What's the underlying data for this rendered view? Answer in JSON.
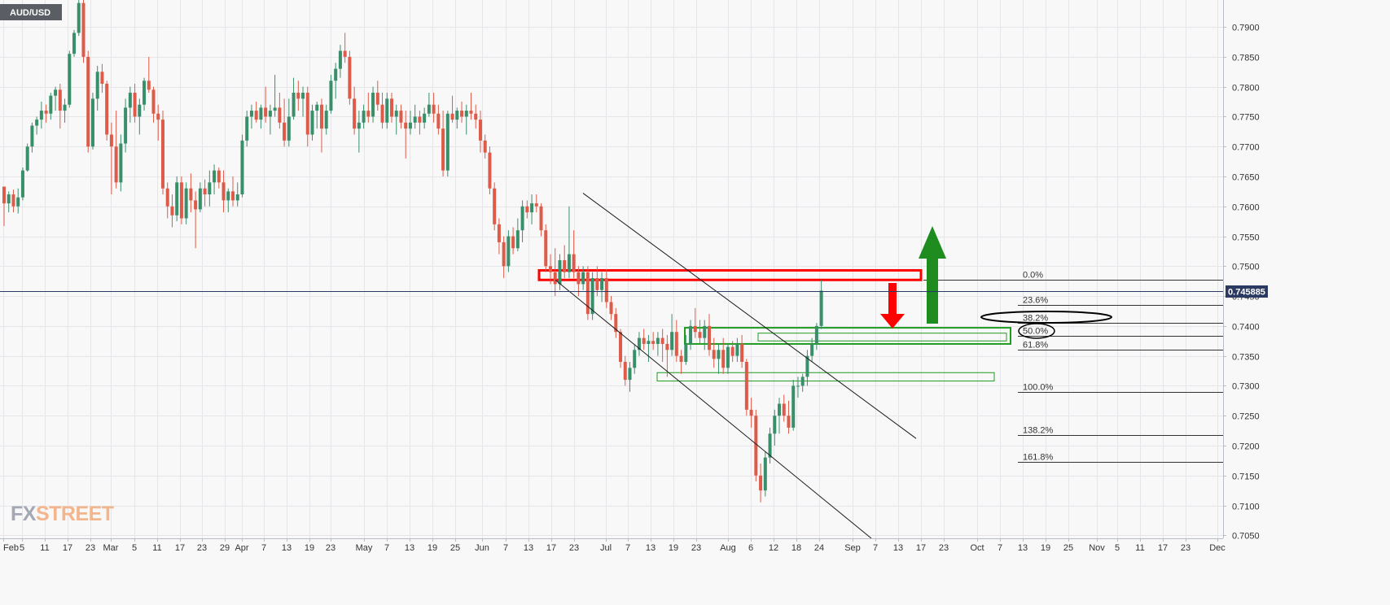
{
  "symbol_label": "AUD/USD",
  "brand": {
    "fx": "FX",
    "street": "STREET"
  },
  "price_label": "0.745885",
  "chart_data": {
    "type": "candlestick",
    "title": "AUD/USD",
    "colors": {
      "up": "#3a8f6b",
      "down": "#de5b49",
      "resistance": "#ff0000",
      "support": "#1f9b1f",
      "arrow_up": "#1f8c1f",
      "arrow_down": "#ff0000",
      "background": "#f8f8f9",
      "grid": "#e6e6ea"
    },
    "ylim": [
      0.7045,
      0.7945
    ],
    "y_ticks": [
      "0.7900",
      "0.7850",
      "0.7800",
      "0.7750",
      "0.7700",
      "0.7650",
      "0.7600",
      "0.7550",
      "0.7500",
      "0.7450",
      "0.7400",
      "0.7350",
      "0.7300",
      "0.7250",
      "0.7200",
      "0.7150",
      "0.7100",
      "0.7050"
    ],
    "x_ticks": [
      "Feb",
      "5",
      "11",
      "17",
      "23",
      "Mar",
      "5",
      "11",
      "17",
      "23",
      "29",
      "Apr",
      "7",
      "13",
      "19",
      "23",
      "May",
      "7",
      "13",
      "19",
      "25",
      "Jun",
      "7",
      "13",
      "17",
      "23",
      "Jul",
      "7",
      "13",
      "19",
      "23",
      "Aug",
      "6",
      "12",
      "18",
      "24",
      "Sep",
      "7",
      "13",
      "17",
      "23",
      "Oct",
      "7",
      "13",
      "19",
      "25",
      "Nov",
      "5",
      "11",
      "17",
      "23",
      "Dec"
    ],
    "current_price": 0.745885,
    "fibonacci": {
      "levels": [
        {
          "label": "0.0%",
          "value": 0.7477
        },
        {
          "label": "23.6%",
          "value": 0.7435
        },
        {
          "label": "38.2%",
          "value": 0.7405
        },
        {
          "label": "50.0%",
          "value": 0.7383
        },
        {
          "label": "61.8%",
          "value": 0.736
        },
        {
          "label": "100.0%",
          "value": 0.729
        },
        {
          "label": "138.2%",
          "value": 0.7218
        },
        {
          "label": "161.8%",
          "value": 0.7173
        }
      ],
      "highlighted": [
        "38.2%",
        "50.0%"
      ]
    },
    "zones": [
      {
        "name": "resistance-zone",
        "from": 0.7477,
        "to": 0.7493
      },
      {
        "name": "support-zone-upper",
        "from": 0.737,
        "to": 0.7397
      },
      {
        "name": "support-zone-mid",
        "from": 0.7375,
        "to": 0.7388
      },
      {
        "name": "support-zone-lower",
        "from": 0.7308,
        "to": 0.7322
      }
    ],
    "trendlines": [
      {
        "name": "upper-channel-line",
        "from": [
          "Jun 23",
          0.7622
        ],
        "to": [
          "Sep 17",
          0.7212
        ]
      },
      {
        "name": "lower-channel-line",
        "from": [
          "Jun 17",
          0.7477
        ],
        "to": [
          "Sep 7",
          0.7045
        ]
      }
    ],
    "candles": [
      [
        0.7633,
        0.7633,
        0.7567,
        0.7605
      ],
      [
        0.7605,
        0.7625,
        0.759,
        0.762
      ],
      [
        0.762,
        0.7628,
        0.759,
        0.76
      ],
      [
        0.76,
        0.763,
        0.7588,
        0.7615
      ],
      [
        0.7615,
        0.7665,
        0.761,
        0.766
      ],
      [
        0.766,
        0.7705,
        0.7658,
        0.77
      ],
      [
        0.77,
        0.774,
        0.769,
        0.7735
      ],
      [
        0.7735,
        0.775,
        0.772,
        0.7745
      ],
      [
        0.7745,
        0.7775,
        0.773,
        0.776
      ],
      [
        0.776,
        0.777,
        0.774,
        0.7755
      ],
      [
        0.7755,
        0.779,
        0.7745,
        0.7785
      ],
      [
        0.7785,
        0.78,
        0.776,
        0.7795
      ],
      [
        0.7795,
        0.7805,
        0.773,
        0.776
      ],
      [
        0.776,
        0.778,
        0.774,
        0.777
      ],
      [
        0.777,
        0.786,
        0.7765,
        0.7855
      ],
      [
        0.7855,
        0.7895,
        0.785,
        0.789
      ],
      [
        0.789,
        0.795,
        0.7885,
        0.794
      ],
      [
        0.794,
        0.7945,
        0.784,
        0.785
      ],
      [
        0.785,
        0.786,
        0.769,
        0.77
      ],
      [
        0.77,
        0.779,
        0.7695,
        0.778
      ],
      [
        0.778,
        0.7835,
        0.776,
        0.7825
      ],
      [
        0.7825,
        0.7838,
        0.779,
        0.7805
      ],
      [
        0.7805,
        0.781,
        0.771,
        0.772
      ],
      [
        0.772,
        0.774,
        0.762,
        0.77
      ],
      [
        0.77,
        0.776,
        0.763,
        0.764
      ],
      [
        0.764,
        0.772,
        0.7625,
        0.7705
      ],
      [
        0.7705,
        0.778,
        0.769,
        0.7765
      ],
      [
        0.7765,
        0.78,
        0.774,
        0.779
      ],
      [
        0.779,
        0.7805,
        0.774,
        0.775
      ],
      [
        0.775,
        0.778,
        0.772,
        0.777
      ],
      [
        0.777,
        0.7815,
        0.776,
        0.781
      ],
      [
        0.781,
        0.785,
        0.779,
        0.7795
      ],
      [
        0.7795,
        0.78,
        0.774,
        0.7755
      ],
      [
        0.7755,
        0.777,
        0.771,
        0.7745
      ],
      [
        0.7745,
        0.776,
        0.762,
        0.763
      ],
      [
        0.763,
        0.764,
        0.758,
        0.76
      ],
      [
        0.76,
        0.762,
        0.7565,
        0.7585
      ],
      [
        0.7585,
        0.765,
        0.7575,
        0.764
      ],
      [
        0.764,
        0.765,
        0.757,
        0.758
      ],
      [
        0.758,
        0.764,
        0.757,
        0.763
      ],
      [
        0.763,
        0.7655,
        0.759,
        0.761
      ],
      [
        0.761,
        0.7625,
        0.753,
        0.7595
      ],
      [
        0.7595,
        0.764,
        0.759,
        0.763
      ],
      [
        0.763,
        0.7645,
        0.76,
        0.762
      ],
      [
        0.762,
        0.766,
        0.76,
        0.764
      ],
      [
        0.764,
        0.767,
        0.762,
        0.766
      ],
      [
        0.766,
        0.7665,
        0.763,
        0.764
      ],
      [
        0.764,
        0.766,
        0.759,
        0.761
      ],
      [
        0.761,
        0.763,
        0.759,
        0.7625
      ],
      [
        0.7625,
        0.765,
        0.76,
        0.761
      ],
      [
        0.761,
        0.764,
        0.76,
        0.762
      ],
      [
        0.762,
        0.772,
        0.7615,
        0.771
      ],
      [
        0.771,
        0.776,
        0.77,
        0.775
      ],
      [
        0.775,
        0.777,
        0.773,
        0.776
      ],
      [
        0.776,
        0.7775,
        0.774,
        0.7745
      ],
      [
        0.7745,
        0.777,
        0.773,
        0.7765
      ],
      [
        0.7765,
        0.78,
        0.774,
        0.775
      ],
      [
        0.775,
        0.777,
        0.772,
        0.776
      ],
      [
        0.776,
        0.782,
        0.775,
        0.7765
      ],
      [
        0.7765,
        0.779,
        0.773,
        0.774
      ],
      [
        0.774,
        0.778,
        0.77,
        0.771
      ],
      [
        0.771,
        0.778,
        0.77,
        0.775
      ],
      [
        0.775,
        0.7815,
        0.7745,
        0.779
      ],
      [
        0.779,
        0.781,
        0.776,
        0.778
      ],
      [
        0.778,
        0.78,
        0.775,
        0.779
      ],
      [
        0.779,
        0.78,
        0.77,
        0.772
      ],
      [
        0.772,
        0.777,
        0.771,
        0.776
      ],
      [
        0.776,
        0.7775,
        0.773,
        0.777
      ],
      [
        0.777,
        0.778,
        0.769,
        0.773
      ],
      [
        0.773,
        0.777,
        0.772,
        0.776
      ],
      [
        0.776,
        0.782,
        0.7755,
        0.781
      ],
      [
        0.781,
        0.784,
        0.778,
        0.783
      ],
      [
        0.783,
        0.787,
        0.7815,
        0.786
      ],
      [
        0.786,
        0.789,
        0.784,
        0.785
      ],
      [
        0.785,
        0.786,
        0.777,
        0.778
      ],
      [
        0.778,
        0.78,
        0.772,
        0.773
      ],
      [
        0.773,
        0.776,
        0.769,
        0.774
      ],
      [
        0.774,
        0.777,
        0.773,
        0.776
      ],
      [
        0.776,
        0.779,
        0.774,
        0.775
      ],
      [
        0.775,
        0.78,
        0.774,
        0.779
      ],
      [
        0.779,
        0.781,
        0.776,
        0.777
      ],
      [
        0.777,
        0.779,
        0.773,
        0.774
      ],
      [
        0.774,
        0.779,
        0.773,
        0.778
      ],
      [
        0.778,
        0.779,
        0.774,
        0.775
      ],
      [
        0.775,
        0.777,
        0.772,
        0.776
      ],
      [
        0.776,
        0.777,
        0.773,
        0.774
      ],
      [
        0.774,
        0.776,
        0.768,
        0.773
      ],
      [
        0.773,
        0.776,
        0.772,
        0.774
      ],
      [
        0.774,
        0.777,
        0.773,
        0.775
      ],
      [
        0.775,
        0.776,
        0.772,
        0.774
      ],
      [
        0.774,
        0.7765,
        0.773,
        0.7755
      ],
      [
        0.7755,
        0.779,
        0.775,
        0.777
      ],
      [
        0.777,
        0.779,
        0.774,
        0.7755
      ],
      [
        0.7755,
        0.777,
        0.772,
        0.773
      ],
      [
        0.773,
        0.776,
        0.765,
        0.766
      ],
      [
        0.766,
        0.776,
        0.765,
        0.7755
      ],
      [
        0.7755,
        0.7785,
        0.774,
        0.7745
      ],
      [
        0.7745,
        0.7765,
        0.773,
        0.776
      ],
      [
        0.776,
        0.7775,
        0.774,
        0.775
      ],
      [
        0.775,
        0.777,
        0.772,
        0.776
      ],
      [
        0.776,
        0.779,
        0.7745,
        0.7755
      ],
      [
        0.7755,
        0.777,
        0.773,
        0.7745
      ],
      [
        0.7745,
        0.776,
        0.769,
        0.771
      ],
      [
        0.771,
        0.772,
        0.768,
        0.769
      ],
      [
        0.769,
        0.77,
        0.762,
        0.763
      ],
      [
        0.763,
        0.764,
        0.756,
        0.757
      ],
      [
        0.757,
        0.758,
        0.752,
        0.754
      ],
      [
        0.754,
        0.755,
        0.748,
        0.75
      ],
      [
        0.75,
        0.756,
        0.749,
        0.755
      ],
      [
        0.755,
        0.7565,
        0.752,
        0.753
      ],
      [
        0.753,
        0.758,
        0.7525,
        0.756
      ],
      [
        0.756,
        0.761,
        0.754,
        0.76
      ],
      [
        0.76,
        0.761,
        0.758,
        0.759
      ],
      [
        0.759,
        0.762,
        0.757,
        0.7605
      ],
      [
        0.7605,
        0.762,
        0.759,
        0.76
      ],
      [
        0.76,
        0.7605,
        0.755,
        0.756
      ],
      [
        0.756,
        0.757,
        0.749,
        0.75
      ],
      [
        0.75,
        0.752,
        0.747,
        0.749
      ],
      [
        0.749,
        0.753,
        0.745,
        0.747
      ],
      [
        0.747,
        0.752,
        0.746,
        0.751
      ],
      [
        0.751,
        0.7535,
        0.748,
        0.749
      ],
      [
        0.749,
        0.76,
        0.748,
        0.752
      ],
      [
        0.752,
        0.756,
        0.748,
        0.749
      ],
      [
        0.749,
        0.75,
        0.745,
        0.747
      ],
      [
        0.747,
        0.75,
        0.746,
        0.749
      ],
      [
        0.749,
        0.75,
        0.741,
        0.742
      ],
      [
        0.742,
        0.749,
        0.741,
        0.748
      ],
      [
        0.748,
        0.75,
        0.745,
        0.746
      ],
      [
        0.746,
        0.749,
        0.744,
        0.748
      ],
      [
        0.748,
        0.7495,
        0.743,
        0.744
      ],
      [
        0.744,
        0.745,
        0.741,
        0.742
      ],
      [
        0.742,
        0.743,
        0.738,
        0.739
      ],
      [
        0.739,
        0.7395,
        0.733,
        0.734
      ],
      [
        0.734,
        0.735,
        0.73,
        0.731
      ],
      [
        0.731,
        0.734,
        0.729,
        0.733
      ],
      [
        0.733,
        0.737,
        0.732,
        0.736
      ],
      [
        0.736,
        0.739,
        0.735,
        0.738
      ],
      [
        0.738,
        0.7395,
        0.736,
        0.737
      ],
      [
        0.737,
        0.7385,
        0.734,
        0.7375
      ],
      [
        0.7375,
        0.739,
        0.736,
        0.737
      ],
      [
        0.737,
        0.739,
        0.735,
        0.738
      ],
      [
        0.738,
        0.7395,
        0.734,
        0.737
      ],
      [
        0.737,
        0.7385,
        0.7315,
        0.736
      ],
      [
        0.736,
        0.742,
        0.735,
        0.739
      ],
      [
        0.739,
        0.741,
        0.734,
        0.735
      ],
      [
        0.735,
        0.736,
        0.732,
        0.734
      ],
      [
        0.734,
        0.7385,
        0.7335,
        0.737
      ],
      [
        0.737,
        0.741,
        0.736,
        0.74
      ],
      [
        0.74,
        0.743,
        0.738,
        0.739
      ],
      [
        0.739,
        0.741,
        0.737,
        0.738
      ],
      [
        0.738,
        0.741,
        0.736,
        0.74
      ],
      [
        0.74,
        0.742,
        0.735,
        0.736
      ],
      [
        0.736,
        0.738,
        0.733,
        0.7345
      ],
      [
        0.7345,
        0.737,
        0.732,
        0.736
      ],
      [
        0.736,
        0.738,
        0.732,
        0.733
      ],
      [
        0.733,
        0.737,
        0.732,
        0.7365
      ],
      [
        0.7365,
        0.7375,
        0.734,
        0.735
      ],
      [
        0.735,
        0.738,
        0.734,
        0.737
      ],
      [
        0.737,
        0.7385,
        0.733,
        0.734
      ],
      [
        0.734,
        0.7345,
        0.725,
        0.726
      ],
      [
        0.726,
        0.728,
        0.723,
        0.725
      ],
      [
        0.725,
        0.726,
        0.714,
        0.715
      ],
      [
        0.715,
        0.717,
        0.7105,
        0.7125
      ],
      [
        0.7125,
        0.719,
        0.7115,
        0.718
      ],
      [
        0.718,
        0.723,
        0.717,
        0.722
      ],
      [
        0.722,
        0.726,
        0.72,
        0.725
      ],
      [
        0.725,
        0.728,
        0.722,
        0.727
      ],
      [
        0.727,
        0.7285,
        0.724,
        0.725
      ],
      [
        0.725,
        0.7275,
        0.722,
        0.723
      ],
      [
        0.723,
        0.731,
        0.7225,
        0.73
      ],
      [
        0.73,
        0.7315,
        0.728,
        0.73
      ],
      [
        0.73,
        0.732,
        0.729,
        0.7315
      ],
      [
        0.7315,
        0.736,
        0.73,
        0.735
      ],
      [
        0.735,
        0.738,
        0.734,
        0.737
      ],
      [
        0.737,
        0.7405,
        0.736,
        0.74
      ],
      [
        0.74,
        0.7477,
        0.7395,
        0.7459
      ]
    ]
  }
}
